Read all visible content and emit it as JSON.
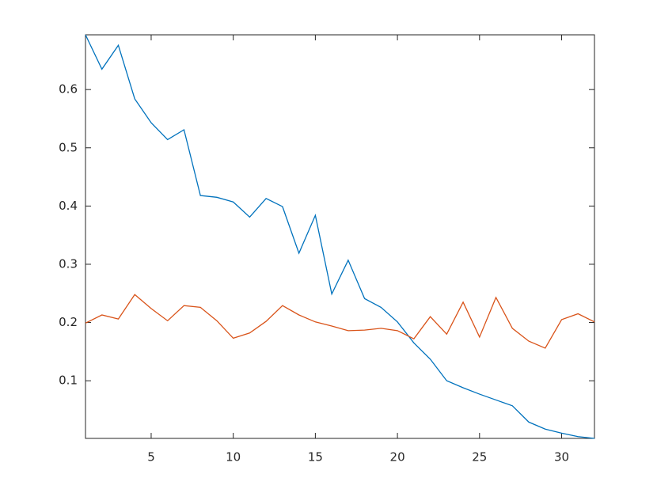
{
  "chart_data": {
    "type": "line",
    "x": [
      1,
      2,
      3,
      4,
      5,
      6,
      7,
      8,
      9,
      10,
      11,
      12,
      13,
      14,
      15,
      16,
      17,
      18,
      19,
      20,
      21,
      22,
      23,
      24,
      25,
      26,
      27,
      28,
      29,
      30,
      31,
      32
    ],
    "series": [
      {
        "color": "#0072bd",
        "values": [
          0.694,
          0.635,
          0.676,
          0.584,
          0.543,
          0.514,
          0.531,
          0.418,
          0.415,
          0.407,
          0.381,
          0.413,
          0.399,
          0.319,
          0.384,
          0.249,
          0.307,
          0.241,
          0.226,
          0.201,
          0.165,
          0.137,
          0.1,
          0.088,
          0.077,
          0.067,
          0.057,
          0.029,
          0.017,
          0.01,
          0.004,
          0.001
        ]
      },
      {
        "color": "#d95319",
        "values": [
          0.199,
          0.213,
          0.206,
          0.248,
          0.224,
          0.203,
          0.229,
          0.226,
          0.203,
          0.173,
          0.182,
          0.202,
          0.229,
          0.213,
          0.201,
          0.194,
          0.186,
          0.187,
          0.19,
          0.186,
          0.172,
          0.21,
          0.18,
          0.235,
          0.175,
          0.243,
          0.19,
          0.168,
          0.156,
          0.205,
          0.215,
          0.201
        ]
      }
    ],
    "xlim": [
      1,
      32
    ],
    "xticks": [
      5,
      10,
      15,
      20,
      25,
      30
    ],
    "ylim": [
      0.001,
      0.694
    ],
    "yticks": [
      0.1,
      0.2,
      0.3,
      0.4,
      0.5,
      0.6
    ],
    "grid": false
  }
}
